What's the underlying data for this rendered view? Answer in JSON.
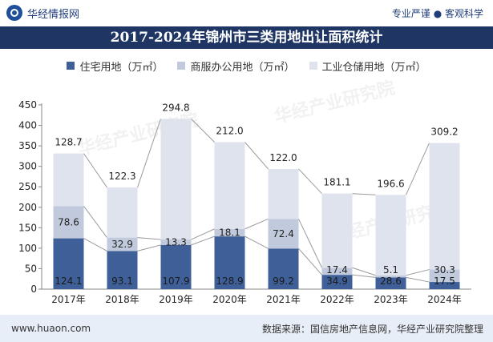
{
  "header": {
    "brand": "华经情报网",
    "tagline": "专业严谨 ● 客观科学"
  },
  "watermark": "华经产业研究院",
  "footer": {
    "website": "www.huaon.com",
    "source": "数据来源：国信房地产信息网，华经产业研究院整理"
  },
  "colors": {
    "residential": "#3f5f98",
    "commercial": "#c1cadc",
    "industrial": "#dfe3ee",
    "titlebar": "#1f3664"
  },
  "chart_data": {
    "type": "bar",
    "stacked": true,
    "title": "2017-2024年锦州市三类用地出让面积统计",
    "xlabel": "",
    "ylabel": "",
    "ylim": [
      0,
      450
    ],
    "yticks": [
      "0",
      "50",
      "100",
      "150",
      "200",
      "250",
      "300",
      "350",
      "400",
      "450"
    ],
    "legend_position": "top",
    "grid": false,
    "categories": [
      "2017年",
      "2018年",
      "2019年",
      "2020年",
      "2021年",
      "2022年",
      "2023年",
      "2024年"
    ],
    "series": [
      {
        "name": "住宅用地（万㎡）",
        "values": [
          124.1,
          93.1,
          107.9,
          128.9,
          99.2,
          34.9,
          28.6,
          17.5
        ],
        "labels": [
          "124.1",
          "93.1",
          "107.9",
          "128.9",
          "99.2",
          "34.9",
          "28.6",
          "17.5"
        ]
      },
      {
        "name": "商服办公用地（万㎡）",
        "values": [
          78.6,
          32.9,
          13.3,
          18.1,
          72.4,
          17.4,
          5.1,
          30.3
        ],
        "labels": [
          "78.6",
          "32.9",
          "13.3",
          "18.1",
          "72.4",
          "17.4",
          "5.1",
          "30.3"
        ]
      },
      {
        "name": "工业仓储用地（万㎡）",
        "values": [
          128.7,
          122.3,
          294.8,
          212.0,
          122.0,
          181.1,
          196.6,
          309.2
        ],
        "labels": [
          "128.7",
          "122.3",
          "294.8",
          "212.0",
          "122.0",
          "181.1",
          "196.6",
          "309.2"
        ]
      }
    ]
  }
}
